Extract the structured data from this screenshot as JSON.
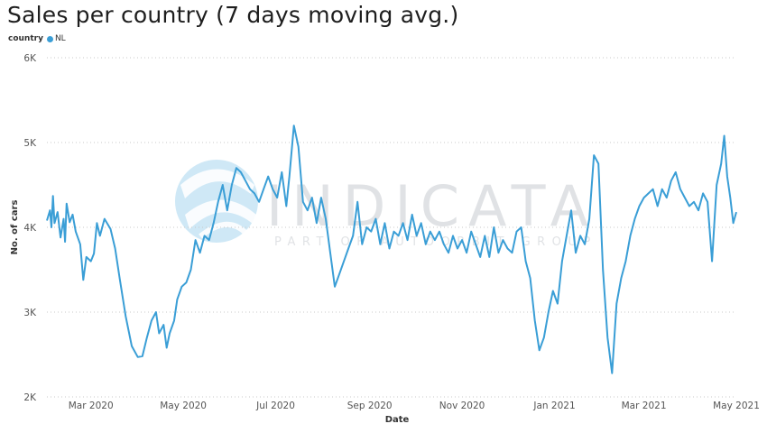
{
  "chart_data": {
    "type": "line",
    "title": "Sales per country (7 days moving avg.)",
    "legend": {
      "title": "country",
      "position": "top-left"
    },
    "xlabel": "Date",
    "ylabel": "No. of cars",
    "ylim": [
      2000,
      6000
    ],
    "yticks": [
      {
        "value": 2000,
        "label": "2K"
      },
      {
        "value": 3000,
        "label": "3K"
      },
      {
        "value": 4000,
        "label": "4K"
      },
      {
        "value": 5000,
        "label": "5K"
      },
      {
        "value": 6000,
        "label": "6K"
      }
    ],
    "xlim": [
      "2020-02-01",
      "2021-05-01"
    ],
    "xticks": [
      {
        "date": "2020-03-01",
        "label": "Mar 2020"
      },
      {
        "date": "2020-05-01",
        "label": "May 2020"
      },
      {
        "date": "2020-07-01",
        "label": "Jul 2020"
      },
      {
        "date": "2020-09-01",
        "label": "Sep 2020"
      },
      {
        "date": "2020-11-01",
        "label": "Nov 2020"
      },
      {
        "date": "2021-01-01",
        "label": "Jan 2021"
      },
      {
        "date": "2021-03-01",
        "label": "Mar 2021"
      },
      {
        "date": "2021-05-01",
        "label": "May 2021"
      }
    ],
    "grid": "horizontal-dotted",
    "series": [
      {
        "name": "NL",
        "color": "#3a9ed6",
        "points": [
          [
            "2020-02-01",
            4080
          ],
          [
            "2020-02-03",
            4200
          ],
          [
            "2020-02-04",
            4000
          ],
          [
            "2020-02-05",
            4370
          ],
          [
            "2020-02-06",
            4050
          ],
          [
            "2020-02-08",
            4180
          ],
          [
            "2020-02-10",
            3880
          ],
          [
            "2020-02-12",
            4100
          ],
          [
            "2020-02-13",
            3830
          ],
          [
            "2020-02-14",
            4280
          ],
          [
            "2020-02-16",
            4060
          ],
          [
            "2020-02-18",
            4150
          ],
          [
            "2020-02-20",
            3950
          ],
          [
            "2020-02-23",
            3800
          ],
          [
            "2020-02-25",
            3380
          ],
          [
            "2020-02-27",
            3650
          ],
          [
            "2020-03-01",
            3600
          ],
          [
            "2020-03-03",
            3690
          ],
          [
            "2020-03-05",
            4050
          ],
          [
            "2020-03-07",
            3900
          ],
          [
            "2020-03-10",
            4100
          ],
          [
            "2020-03-14",
            3980
          ],
          [
            "2020-03-17",
            3750
          ],
          [
            "2020-03-20",
            3400
          ],
          [
            "2020-03-24",
            2950
          ],
          [
            "2020-03-28",
            2600
          ],
          [
            "2020-04-01",
            2470
          ],
          [
            "2020-04-04",
            2480
          ],
          [
            "2020-04-07",
            2700
          ],
          [
            "2020-04-10",
            2900
          ],
          [
            "2020-04-13",
            3000
          ],
          [
            "2020-04-15",
            2750
          ],
          [
            "2020-04-18",
            2850
          ],
          [
            "2020-04-20",
            2580
          ],
          [
            "2020-04-22",
            2750
          ],
          [
            "2020-04-25",
            2900
          ],
          [
            "2020-04-27",
            3150
          ],
          [
            "2020-04-30",
            3300
          ],
          [
            "2020-05-03",
            3350
          ],
          [
            "2020-05-06",
            3500
          ],
          [
            "2020-05-09",
            3850
          ],
          [
            "2020-05-12",
            3700
          ],
          [
            "2020-05-15",
            3900
          ],
          [
            "2020-05-18",
            3850
          ],
          [
            "2020-05-21",
            4050
          ],
          [
            "2020-05-24",
            4300
          ],
          [
            "2020-05-27",
            4500
          ],
          [
            "2020-05-30",
            4200
          ],
          [
            "2020-06-02",
            4500
          ],
          [
            "2020-06-05",
            4700
          ],
          [
            "2020-06-08",
            4650
          ],
          [
            "2020-06-11",
            4550
          ],
          [
            "2020-06-14",
            4450
          ],
          [
            "2020-06-17",
            4400
          ],
          [
            "2020-06-20",
            4300
          ],
          [
            "2020-06-23",
            4450
          ],
          [
            "2020-06-26",
            4600
          ],
          [
            "2020-06-29",
            4450
          ],
          [
            "2020-07-02",
            4350
          ],
          [
            "2020-07-05",
            4650
          ],
          [
            "2020-07-08",
            4250
          ],
          [
            "2020-07-10",
            4600
          ],
          [
            "2020-07-13",
            5200
          ],
          [
            "2020-07-16",
            4950
          ],
          [
            "2020-07-19",
            4300
          ],
          [
            "2020-07-22",
            4200
          ],
          [
            "2020-07-25",
            4350
          ],
          [
            "2020-07-28",
            4050
          ],
          [
            "2020-07-31",
            4350
          ],
          [
            "2020-08-03",
            4100
          ],
          [
            "2020-08-06",
            3700
          ],
          [
            "2020-08-09",
            3300
          ],
          [
            "2020-08-12",
            3450
          ],
          [
            "2020-08-15",
            3600
          ],
          [
            "2020-08-18",
            3750
          ],
          [
            "2020-08-21",
            3900
          ],
          [
            "2020-08-24",
            4300
          ],
          [
            "2020-08-27",
            3800
          ],
          [
            "2020-08-30",
            4000
          ],
          [
            "2020-09-02",
            3950
          ],
          [
            "2020-09-05",
            4100
          ],
          [
            "2020-09-08",
            3800
          ],
          [
            "2020-09-11",
            4050
          ],
          [
            "2020-09-14",
            3750
          ],
          [
            "2020-09-17",
            3950
          ],
          [
            "2020-09-20",
            3900
          ],
          [
            "2020-09-23",
            4050
          ],
          [
            "2020-09-26",
            3850
          ],
          [
            "2020-09-29",
            4150
          ],
          [
            "2020-10-02",
            3900
          ],
          [
            "2020-10-05",
            4050
          ],
          [
            "2020-10-08",
            3800
          ],
          [
            "2020-10-11",
            3950
          ],
          [
            "2020-10-14",
            3850
          ],
          [
            "2020-10-17",
            3950
          ],
          [
            "2020-10-20",
            3800
          ],
          [
            "2020-10-23",
            3700
          ],
          [
            "2020-10-26",
            3900
          ],
          [
            "2020-10-29",
            3750
          ],
          [
            "2020-11-01",
            3850
          ],
          [
            "2020-11-04",
            3700
          ],
          [
            "2020-11-07",
            3950
          ],
          [
            "2020-11-10",
            3800
          ],
          [
            "2020-11-13",
            3650
          ],
          [
            "2020-11-16",
            3900
          ],
          [
            "2020-11-19",
            3650
          ],
          [
            "2020-11-22",
            4000
          ],
          [
            "2020-11-25",
            3700
          ],
          [
            "2020-11-28",
            3850
          ],
          [
            "2020-12-01",
            3750
          ],
          [
            "2020-12-04",
            3700
          ],
          [
            "2020-12-07",
            3950
          ],
          [
            "2020-12-10",
            4000
          ],
          [
            "2020-12-13",
            3600
          ],
          [
            "2020-12-16",
            3400
          ],
          [
            "2020-12-19",
            2900
          ],
          [
            "2020-12-22",
            2550
          ],
          [
            "2020-12-25",
            2700
          ],
          [
            "2020-12-28",
            3000
          ],
          [
            "2020-12-31",
            3250
          ],
          [
            "2021-01-03",
            3100
          ],
          [
            "2021-01-06",
            3600
          ],
          [
            "2021-01-09",
            3900
          ],
          [
            "2021-01-12",
            4200
          ],
          [
            "2021-01-15",
            3700
          ],
          [
            "2021-01-18",
            3900
          ],
          [
            "2021-01-21",
            3800
          ],
          [
            "2021-01-24",
            4100
          ],
          [
            "2021-01-27",
            4850
          ],
          [
            "2021-01-30",
            4750
          ],
          [
            "2021-02-02",
            3500
          ],
          [
            "2021-02-05",
            2700
          ],
          [
            "2021-02-08",
            2280
          ],
          [
            "2021-02-11",
            3100
          ],
          [
            "2021-02-14",
            3400
          ],
          [
            "2021-02-17",
            3600
          ],
          [
            "2021-02-20",
            3900
          ],
          [
            "2021-02-23",
            4100
          ],
          [
            "2021-02-26",
            4250
          ],
          [
            "2021-03-01",
            4350
          ],
          [
            "2021-03-04",
            4400
          ],
          [
            "2021-03-07",
            4450
          ],
          [
            "2021-03-10",
            4250
          ],
          [
            "2021-03-13",
            4450
          ],
          [
            "2021-03-16",
            4350
          ],
          [
            "2021-03-19",
            4550
          ],
          [
            "2021-03-22",
            4650
          ],
          [
            "2021-03-25",
            4450
          ],
          [
            "2021-03-28",
            4350
          ],
          [
            "2021-03-31",
            4250
          ],
          [
            "2021-04-03",
            4300
          ],
          [
            "2021-04-06",
            4200
          ],
          [
            "2021-04-09",
            4400
          ],
          [
            "2021-04-12",
            4300
          ],
          [
            "2021-04-15",
            3600
          ],
          [
            "2021-04-18",
            4500
          ],
          [
            "2021-04-21",
            4750
          ],
          [
            "2021-04-23",
            5080
          ],
          [
            "2021-04-25",
            4600
          ],
          [
            "2021-04-27",
            4350
          ],
          [
            "2021-04-29",
            4050
          ],
          [
            "2021-05-01",
            4180
          ]
        ]
      }
    ]
  },
  "watermark": {
    "brand": "INDICATA",
    "tagline": "PART OF AUTOORBIT GROUP"
  }
}
